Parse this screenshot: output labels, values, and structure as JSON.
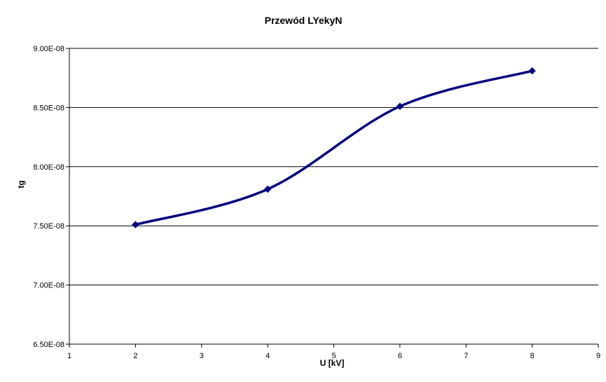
{
  "chart_data": {
    "type": "line",
    "title": "Przewód LYekyN",
    "xlabel": "U  [kV]",
    "ylabel": "tg",
    "xlim": [
      1,
      9
    ],
    "ylim": [
      6.5e-08,
      9e-08
    ],
    "x_ticks": [
      "1",
      "2",
      "3",
      "4",
      "5",
      "6",
      "7",
      "8",
      "9"
    ],
    "y_ticks": [
      "6.50E-08",
      "7.00E-08",
      "7.50E-08",
      "8.00E-08",
      "8.50E-08",
      "9.00E-08"
    ],
    "grid": true,
    "legend": "none",
    "series": [
      {
        "x": [
          2,
          4,
          6,
          8
        ],
        "values": [
          7.51e-08,
          7.81e-08,
          8.51e-08,
          8.81e-08
        ],
        "color": "#000080",
        "marker": "diamond"
      }
    ]
  }
}
